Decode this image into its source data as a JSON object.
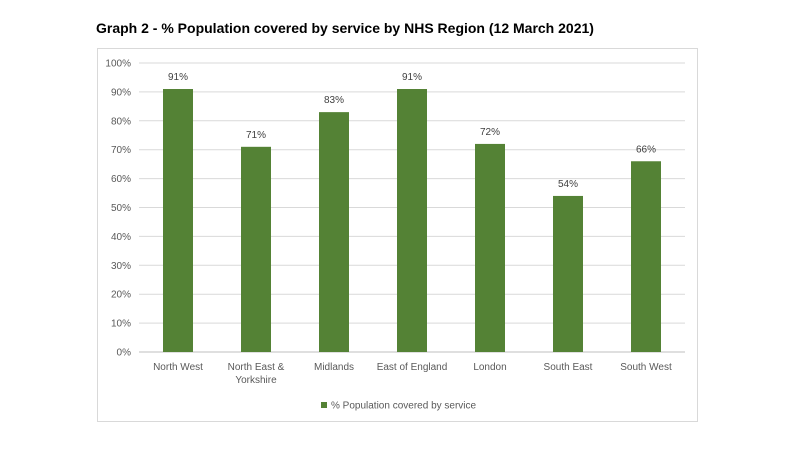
{
  "title": "Graph 2 - % Population covered by service by NHS Region (12 March 2021)",
  "colors": {
    "bar": "#548235",
    "grid": "#d9d9d9",
    "axis": "#bfbfbf"
  },
  "chart_data": {
    "type": "bar",
    "categories": [
      [
        "North West"
      ],
      [
        "North East &",
        "Yorkshire"
      ],
      [
        "Midlands"
      ],
      [
        "East of England"
      ],
      [
        "London"
      ],
      [
        "South East"
      ],
      [
        "South West"
      ]
    ],
    "series": [
      {
        "name": "% Population covered by service",
        "values": [
          91,
          71,
          83,
          91,
          72,
          54,
          66
        ],
        "labels": [
          "91%",
          "71%",
          "83%",
          "91%",
          "72%",
          "54%",
          "66%"
        ]
      }
    ],
    "ylim": [
      0,
      100
    ],
    "yticks": [
      "0%",
      "10%",
      "20%",
      "30%",
      "40%",
      "50%",
      "60%",
      "70%",
      "80%",
      "90%",
      "100%"
    ],
    "grid": true,
    "legend": "bottom-center"
  }
}
